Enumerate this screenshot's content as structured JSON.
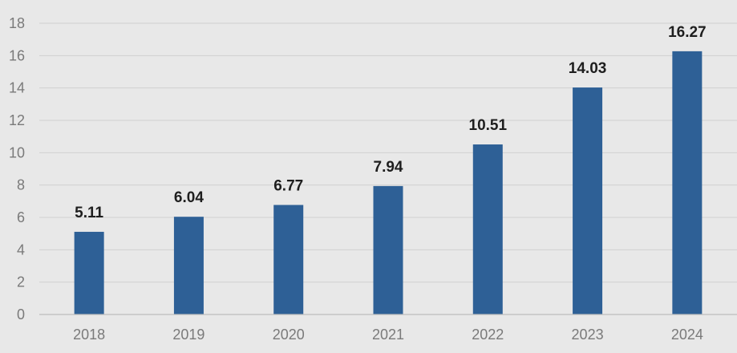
{
  "chart_data": {
    "type": "bar",
    "categories": [
      "2018",
      "2019",
      "2020",
      "2021",
      "2022",
      "2023",
      "2024"
    ],
    "values": [
      5.11,
      6.04,
      6.77,
      7.94,
      10.51,
      14.03,
      16.27
    ],
    "data_labels": [
      "5.11",
      "6.04",
      "6.77",
      "7.94",
      "10.51",
      "14.03",
      "16.27"
    ],
    "title": "",
    "xlabel": "",
    "ylabel": "",
    "ylim": [
      0,
      18
    ],
    "yticks": [
      0,
      2,
      4,
      6,
      8,
      10,
      12,
      14,
      16,
      18
    ],
    "ytick_labels": [
      "0",
      "2",
      "4",
      "6",
      "8",
      "10",
      "12",
      "14",
      "16",
      "18"
    ],
    "grid": true,
    "legend": "none",
    "bar_color": "#2e6096",
    "background_color": "#e8e8e8"
  }
}
